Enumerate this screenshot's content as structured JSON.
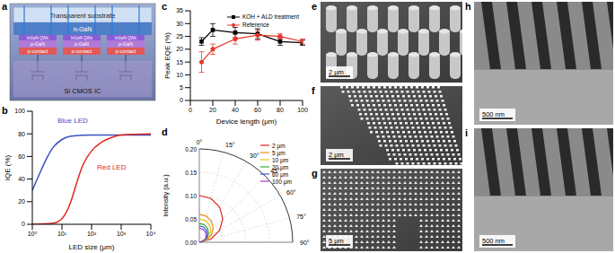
{
  "schematic": {
    "panel": "a",
    "substrate": "Transparent substrate",
    "n_layer": "n-GaN",
    "pixels": [
      {
        "qw": "InGaN QWs",
        "p_layer": "p-GaN",
        "contact": "p-contact"
      },
      {
        "qw": "InGaN QWs",
        "p_layer": "p-GaN",
        "contact": "p-contact"
      },
      {
        "qw": "InGaN QWs",
        "p_layer": "p-GaN",
        "contact": "p-contact"
      }
    ],
    "ic": "Si CMOS IC"
  },
  "chart_data": [
    {
      "panel": "b",
      "type": "line",
      "x_label": "LED size (μm)",
      "y_label": "IQE (%)",
      "log": "x",
      "xlim": [
        1,
        10000
      ],
      "xticks": [
        {
          "value": 1,
          "label": "10⁰"
        },
        {
          "value": 10,
          "label": "10¹"
        },
        {
          "value": 100,
          "label": "10²"
        },
        {
          "value": 1000,
          "label": "10³"
        },
        {
          "value": 10000,
          "label": "10⁴"
        }
      ],
      "ylim": [
        0,
        100
      ],
      "yticks": [
        0,
        20,
        40,
        60,
        80,
        100
      ],
      "series": [
        {
          "name": "Blue LED",
          "color": "#3b4fc6",
          "x": [
            1,
            2,
            3,
            5,
            10,
            20,
            100,
            1000,
            10000
          ],
          "values": [
            30,
            48,
            58,
            68,
            75,
            78,
            79,
            79,
            79
          ]
        },
        {
          "name": "Red LED",
          "color": "#e0261f",
          "x": [
            1,
            5,
            10,
            20,
            30,
            50,
            100,
            200,
            500,
            1000,
            10000
          ],
          "values": [
            0,
            1,
            5,
            20,
            35,
            52,
            65,
            72,
            77,
            79,
            80
          ]
        }
      ]
    },
    {
      "panel": "c",
      "type": "line",
      "x_label": "Device length (μm)",
      "y_label": "Peak EQE (%)",
      "xlim": [
        0,
        100
      ],
      "xticks": [
        0,
        20,
        40,
        60,
        80,
        100
      ],
      "ylim": [
        0,
        35
      ],
      "yticks": [
        0,
        5,
        10,
        15,
        20,
        25,
        30,
        35
      ],
      "legend": "upper right",
      "x": [
        10,
        20,
        40,
        60,
        80,
        100
      ],
      "series": [
        {
          "name": "KOH + ALD treatment",
          "color": "#000000",
          "marker": "square",
          "values": [
            23,
            27.5,
            26.5,
            26,
            23,
            22.5
          ],
          "errors": [
            1.5,
            2.5,
            2,
            2,
            1.5,
            1
          ]
        },
        {
          "name": "Reference",
          "color": "#e8352a",
          "marker": "circle",
          "values": [
            15,
            20,
            24,
            25.5,
            25,
            23
          ],
          "errors": [
            4,
            2,
            2,
            2,
            1,
            1
          ]
        }
      ]
    },
    {
      "panel": "d",
      "type": "polar",
      "y_label": "Intensity (a.u.)",
      "x": [
        0,
        15,
        30,
        45,
        60,
        75,
        90
      ],
      "xlim": [
        0,
        90
      ],
      "xticks": [
        {
          "value": 0,
          "label": "0°"
        },
        {
          "value": 15,
          "label": "15°"
        },
        {
          "value": 30,
          "label": "30°"
        },
        {
          "value": 45,
          "label": "45°"
        },
        {
          "value": 60,
          "label": "60°"
        },
        {
          "value": 75,
          "label": "75°"
        },
        {
          "value": 90,
          "label": "90°"
        }
      ],
      "ylim": [
        0,
        0.2
      ],
      "yticks": [
        {
          "value": 0,
          "label": "0.00"
        },
        {
          "value": 0.05,
          "label": "0.05"
        },
        {
          "value": 0.1,
          "label": "0.10"
        },
        {
          "value": 0.15,
          "label": "0.15"
        },
        {
          "value": 0.2,
          "label": "0.20"
        }
      ],
      "legend": "upper right",
      "series": [
        {
          "name": "2 μm",
          "color": "#e0261f",
          "values": [
            0.1,
            0.097,
            0.087,
            0.071,
            0.05,
            0.026,
            0
          ]
        },
        {
          "name": "5 μm",
          "color": "#f08a1c",
          "values": [
            0.06,
            0.058,
            0.052,
            0.042,
            0.03,
            0.016,
            0
          ]
        },
        {
          "name": "10 μm",
          "color": "#e6c619",
          "values": [
            0.05,
            0.048,
            0.043,
            0.035,
            0.025,
            0.013,
            0
          ]
        },
        {
          "name": "20 μm",
          "color": "#3aa83a",
          "values": [
            0.04,
            0.039,
            0.035,
            0.028,
            0.02,
            0.01,
            0
          ]
        },
        {
          "name": "60 μm",
          "color": "#2f5fd0",
          "values": [
            0.035,
            0.034,
            0.03,
            0.025,
            0.018,
            0.009,
            0
          ]
        },
        {
          "name": "100 μm",
          "color": "#a23cc8",
          "values": [
            0.03,
            0.029,
            0.026,
            0.021,
            0.015,
            0.008,
            0
          ]
        }
      ]
    }
  ],
  "images": [
    {
      "panel": "e",
      "scale_bar": "2 μm"
    },
    {
      "panel": "f",
      "scale_bar": "2 μm"
    },
    {
      "panel": "g",
      "scale_bar": "5 μm"
    },
    {
      "panel": "h",
      "scale_bar": "500 nm"
    },
    {
      "panel": "i",
      "scale_bar": "500 nm"
    }
  ]
}
